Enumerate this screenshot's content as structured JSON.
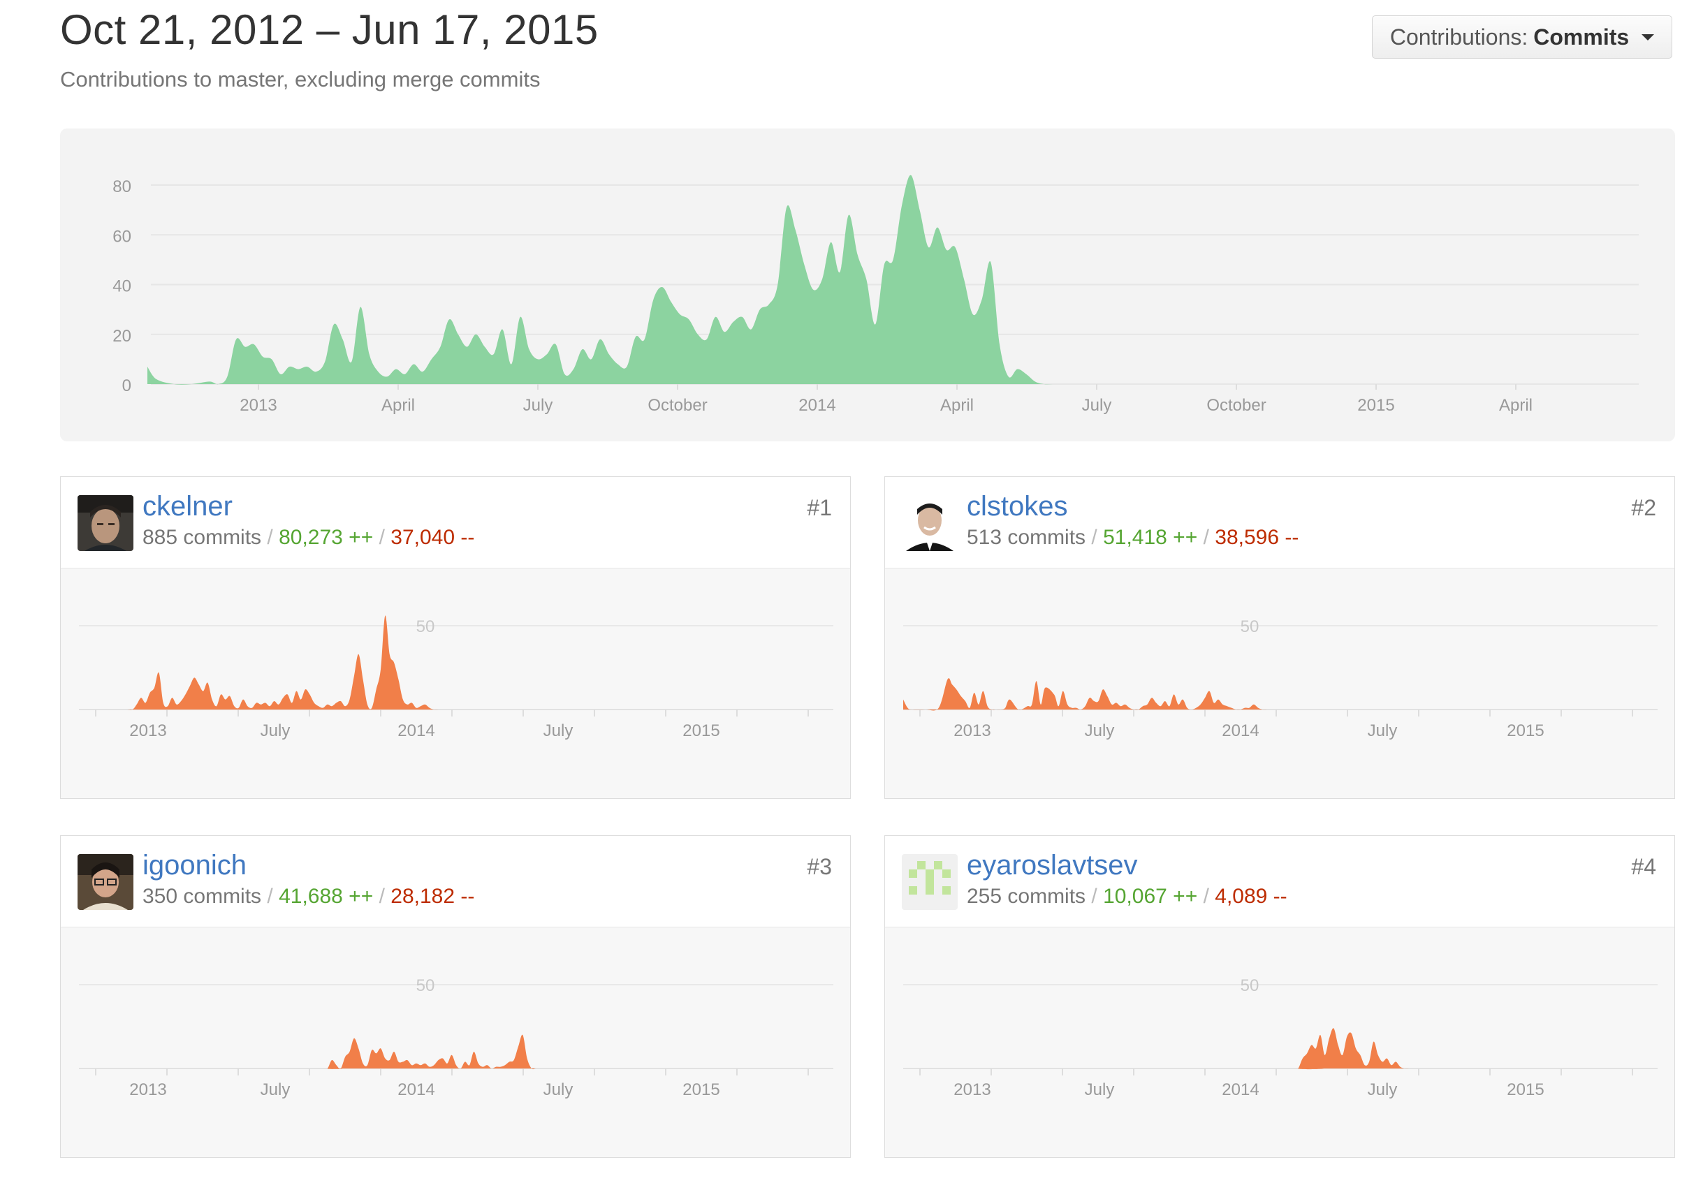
{
  "header": {
    "range_title": "Oct 21, 2012 – Jun 17, 2015",
    "subtitle": "Contributions to master, excluding merge commits",
    "select_label": "Contributions:",
    "select_value": "Commits"
  },
  "colors": {
    "main_area": "#8cd3a0",
    "contributor_area": "#f17f49",
    "link": "#4078c0",
    "additions": "#55a532",
    "deletions": "#bd2c00"
  },
  "chart_data": [
    {
      "type": "area",
      "title": "",
      "xlabel": "",
      "ylabel": "",
      "ylim": [
        0,
        90
      ],
      "y_ticks": [
        "80",
        "60",
        "40",
        "20",
        "0"
      ],
      "x_tick_labels": [
        "2013",
        "April",
        "July",
        "October",
        "2014",
        "April",
        "July",
        "October",
        "2015",
        "April"
      ],
      "grid": true,
      "x_unit": "weeks since Oct 21, 2012",
      "x": [
        0,
        1,
        3,
        5,
        7,
        8,
        9,
        10,
        11,
        12,
        13,
        14,
        15,
        16,
        17,
        18,
        19,
        20,
        21,
        22,
        23,
        24,
        25,
        26,
        27,
        28,
        29,
        30,
        31,
        32,
        33,
        34,
        35,
        36,
        37,
        38,
        39,
        40,
        41,
        42,
        43,
        44,
        45,
        46,
        47,
        48,
        49,
        50,
        51,
        52,
        53,
        54,
        55,
        56,
        57,
        58,
        59,
        60,
        61,
        62,
        63,
        64,
        65,
        66,
        67,
        68,
        69,
        70,
        71,
        72,
        73,
        74,
        75,
        76,
        77,
        78,
        79,
        80,
        81,
        82,
        83,
        84,
        85,
        86,
        87,
        88,
        89,
        90,
        91,
        92,
        93,
        94,
        95,
        96,
        97,
        98,
        99,
        100,
        101,
        102,
        103,
        104,
        105,
        106,
        107,
        108,
        109,
        110,
        111,
        112,
        113,
        114,
        115,
        116,
        117,
        118,
        119,
        120,
        121,
        122,
        123,
        124,
        125,
        126,
        127,
        128,
        129,
        130,
        131,
        132,
        133,
        134,
        135,
        136,
        137,
        138,
        139,
        140,
        142,
        145,
        150,
        155,
        160,
        165,
        168
      ],
      "y": [
        7,
        2,
        0,
        0,
        1,
        0,
        3,
        18,
        15,
        16,
        11,
        10,
        4,
        7,
        6,
        7,
        5,
        9,
        24,
        18,
        9,
        31,
        12,
        5,
        3,
        6,
        4,
        8,
        5,
        10,
        15,
        26,
        20,
        15,
        20,
        15,
        12,
        22,
        8,
        27,
        14,
        10,
        12,
        16,
        4,
        6,
        14,
        10,
        18,
        12,
        8,
        7,
        19,
        18,
        34,
        39,
        33,
        28,
        26,
        20,
        18,
        27,
        21,
        25,
        27,
        22,
        30,
        32,
        40,
        71,
        62,
        48,
        38,
        42,
        57,
        45,
        68,
        52,
        42,
        24,
        48,
        50,
        72,
        84,
        70,
        55,
        63,
        54,
        55,
        42,
        28,
        34,
        49,
        16,
        3,
        6,
        4,
        1,
        0,
        0,
        0,
        0,
        0,
        0,
        0,
        0,
        0,
        0,
        0,
        0,
        0,
        0,
        0,
        0,
        0,
        0,
        0,
        0,
        0,
        0,
        0,
        0,
        0,
        0,
        0,
        0,
        0,
        0,
        0,
        0,
        0,
        0,
        0,
        0,
        0,
        0,
        0,
        0,
        0,
        0,
        0,
        0,
        0,
        0,
        0
      ]
    }
  ],
  "contributor_axis": {
    "y_tick": "50",
    "x_tick_labels": [
      "2013",
      "July",
      "2014",
      "July",
      "2015"
    ]
  },
  "contributors": [
    {
      "username": "ckelner",
      "rank": "#1",
      "commits": "885 commits",
      "additions": "80,273 ++",
      "deletions": "37,040 --",
      "series_x": [
        0,
        10,
        12,
        13,
        14,
        15,
        16,
        17,
        18,
        19,
        20,
        21,
        22,
        23,
        24,
        25,
        26,
        27,
        28,
        29,
        30,
        31,
        32,
        33,
        34,
        35,
        36,
        37,
        38,
        39,
        40,
        41,
        42,
        43,
        44,
        45,
        46,
        47,
        48,
        49,
        50,
        51,
        52,
        53,
        54,
        55,
        56,
        57,
        58,
        59,
        60,
        61,
        62,
        63,
        64,
        65,
        66,
        67,
        68,
        69,
        70,
        71,
        72,
        73,
        74,
        75,
        76,
        77,
        78,
        79,
        80,
        81,
        82,
        83,
        84,
        85,
        86,
        87,
        88,
        89,
        90,
        91,
        92,
        93,
        94,
        95,
        96,
        97,
        100,
        110,
        120,
        125,
        130,
        140,
        150,
        165,
        170
      ],
      "series_y": [
        0,
        0,
        0,
        3,
        7,
        4,
        10,
        13,
        22,
        4,
        2,
        7,
        3,
        5,
        9,
        14,
        19,
        15,
        11,
        16,
        6,
        2,
        9,
        6,
        8,
        2,
        1,
        6,
        2,
        1,
        4,
        3,
        4,
        2,
        5,
        3,
        7,
        9,
        4,
        11,
        6,
        12,
        9,
        4,
        2,
        1,
        3,
        2,
        4,
        5,
        2,
        6,
        20,
        33,
        18,
        3,
        1,
        12,
        24,
        56,
        33,
        28,
        18,
        6,
        3,
        4,
        1,
        2,
        3,
        1,
        0,
        0,
        0,
        0,
        0,
        0,
        0,
        0,
        0,
        0,
        0,
        0,
        0,
        0,
        0,
        0,
        0,
        0,
        0,
        0,
        0,
        0,
        0,
        0,
        0,
        0,
        0
      ],
      "avatar": "photo-dark-hair"
    },
    {
      "username": "clstokes",
      "rank": "#2",
      "commits": "513 commits",
      "additions": "51,418 ++",
      "deletions": "38,596 --",
      "series_x": [
        0,
        1,
        2,
        5,
        8,
        10,
        11,
        12,
        13,
        14,
        15,
        16,
        17,
        18,
        19,
        20,
        21,
        22,
        23,
        24,
        26,
        28,
        29,
        30,
        31,
        32,
        34,
        35,
        36,
        37,
        38,
        39,
        40,
        41,
        42,
        43,
        44,
        45,
        46,
        47,
        48,
        49,
        50,
        51,
        52,
        53,
        54,
        55,
        56,
        57,
        58,
        59,
        60,
        61,
        62,
        63,
        64,
        65,
        66,
        67,
        68,
        69,
        70,
        71,
        72,
        73,
        74,
        75,
        76,
        77,
        78,
        79,
        80,
        81,
        82,
        83,
        84,
        86,
        88,
        92,
        110,
        130,
        150,
        170
      ],
      "series_y": [
        6,
        1,
        0,
        0,
        1,
        18,
        15,
        12,
        8,
        5,
        1,
        10,
        3,
        11,
        2,
        0,
        0,
        0,
        1,
        6,
        0,
        2,
        3,
        17,
        3,
        13,
        9,
        2,
        11,
        3,
        1,
        1,
        0,
        2,
        7,
        5,
        5,
        12,
        8,
        3,
        4,
        2,
        3,
        1,
        0,
        0,
        2,
        3,
        7,
        4,
        2,
        5,
        2,
        9,
        3,
        6,
        1,
        0,
        1,
        3,
        7,
        11,
        4,
        6,
        3,
        2,
        1,
        0,
        0,
        1,
        1,
        3,
        1,
        0,
        0,
        0,
        0,
        0,
        0,
        0,
        0,
        0,
        0,
        0
      ],
      "avatar": "photo-suit"
    },
    {
      "username": "igoonich",
      "rank": "#3",
      "commits": "350 commits",
      "additions": "41,688 ++",
      "deletions": "28,182 --",
      "series_x": [
        0,
        55,
        56,
        57,
        58,
        59,
        60,
        61,
        62,
        63,
        64,
        65,
        66,
        67,
        68,
        69,
        70,
        71,
        72,
        73,
        74,
        75,
        76,
        77,
        78,
        79,
        80,
        81,
        82,
        83,
        84,
        85,
        86,
        87,
        88,
        89,
        90,
        91,
        92,
        93,
        94,
        95,
        96,
        97,
        98,
        99,
        100,
        101,
        102,
        103,
        104,
        105,
        106,
        107,
        108,
        109,
        110,
        111,
        112,
        113,
        114,
        115,
        116,
        117,
        120,
        130,
        170
      ],
      "series_y": [
        0,
        0,
        0,
        5,
        2,
        0,
        7,
        10,
        18,
        12,
        3,
        2,
        11,
        9,
        12,
        6,
        5,
        10,
        4,
        4,
        5,
        2,
        3,
        2,
        3,
        1,
        2,
        5,
        6,
        3,
        8,
        2,
        0,
        4,
        2,
        10,
        3,
        1,
        2,
        0,
        1,
        1,
        2,
        4,
        5,
        13,
        20,
        6,
        0,
        0,
        0,
        0,
        0,
        0,
        0,
        0,
        0,
        0,
        0,
        0,
        0,
        0,
        0,
        0,
        0,
        0,
        0
      ],
      "avatar": "photo-glasses"
    },
    {
      "username": "eyaroslavtsev",
      "rank": "#4",
      "commits": "255 commits",
      "additions": "10,067 ++",
      "deletions": "4,089 --",
      "series_x": [
        0,
        88,
        89,
        90,
        91,
        92,
        93,
        94,
        95,
        96,
        97,
        98,
        99,
        100,
        101,
        102,
        103,
        104,
        105,
        106,
        107,
        108,
        109,
        110,
        111,
        112,
        113,
        114,
        115,
        116,
        117,
        118,
        119,
        120,
        122,
        140,
        170
      ],
      "series_y": [
        0,
        0,
        0,
        6,
        9,
        14,
        12,
        20,
        8,
        18,
        24,
        14,
        8,
        19,
        21,
        12,
        8,
        2,
        4,
        16,
        8,
        4,
        6,
        2,
        4,
        1,
        0,
        0,
        0,
        0,
        0,
        0,
        0,
        0,
        0,
        0,
        0
      ],
      "avatar": "identicon-green"
    }
  ]
}
